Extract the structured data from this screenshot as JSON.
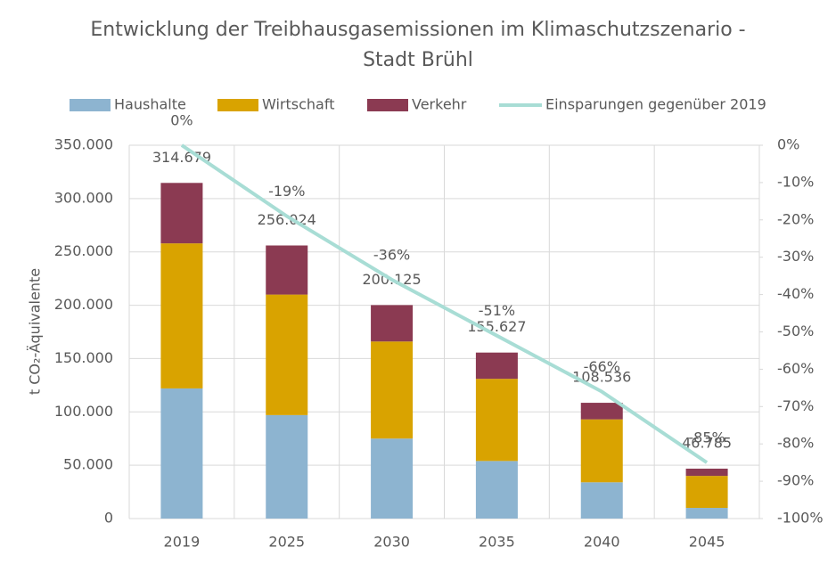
{
  "chart_data": {
    "type": "bar",
    "title": "Entwicklung der Treibhausgasemissionen im Klimaschutzszenario -",
    "subtitle": "Stadt Brühl",
    "y_label": "t CO₂-Äquivalente",
    "categories": [
      "2019",
      "2025",
      "2030",
      "2035",
      "2040",
      "2045"
    ],
    "stacked": true,
    "series": [
      {
        "name": "Haushalte",
        "color": "#8db4d0",
        "values": [
          122000,
          97000,
          75000,
          54000,
          34000,
          10000
        ]
      },
      {
        "name": "Wirtschaft",
        "color": "#d9a300",
        "values": [
          136000,
          113000,
          91000,
          77000,
          59000,
          30000
        ]
      },
      {
        "name": "Verkehr",
        "color": "#8b3a52",
        "values": [
          56679,
          46024,
          34125,
          24627,
          15536,
          6785
        ]
      },
      {
        "name": "Einsparungen gegenüber 2019",
        "color": "#a8ddd5",
        "type": "line",
        "axis": "y2",
        "values": [
          0,
          -19,
          -36,
          -51,
          -66,
          -85
        ],
        "value_labels": [
          "0%",
          "-19%",
          "-36%",
          "-51%",
          "-66%",
          "-85%"
        ]
      }
    ],
    "totals": {
      "values": [
        314679,
        256024,
        200125,
        155627,
        108536,
        46785
      ],
      "value_labels": [
        "314.679",
        "256.024",
        "200.125",
        "155.627",
        "108.536",
        "46.785"
      ]
    },
    "ylim": [
      0,
      350000
    ],
    "yticks": [
      0,
      {
        "value": 50000,
        "label": "50.000"
      },
      {
        "value": 100000,
        "label": "100.000"
      },
      {
        "value": 150000,
        "label": "150.000"
      },
      {
        "value": 200000,
        "label": "200.000"
      },
      {
        "value": 250000,
        "label": "250.000"
      },
      {
        "value": 300000,
        "label": "300.000"
      },
      {
        "value": 350000,
        "label": "350.000"
      }
    ],
    "y2lim": [
      -100,
      0
    ],
    "y2ticks": [
      {
        "value": -100,
        "label": "-100%"
      },
      {
        "value": -90,
        "label": "-90%"
      },
      {
        "value": -80,
        "label": "-80%"
      },
      {
        "value": -70,
        "label": "-70%"
      },
      {
        "value": -60,
        "label": "-60%"
      },
      {
        "value": -50,
        "label": "-50%"
      },
      {
        "value": -40,
        "label": "-40%"
      },
      {
        "value": -30,
        "label": "-30%"
      },
      {
        "value": -20,
        "label": "-20%"
      },
      {
        "value": -10,
        "label": "-10%"
      },
      {
        "value": 0,
        "label": "0%"
      }
    ],
    "grid": true,
    "legend": "top"
  }
}
